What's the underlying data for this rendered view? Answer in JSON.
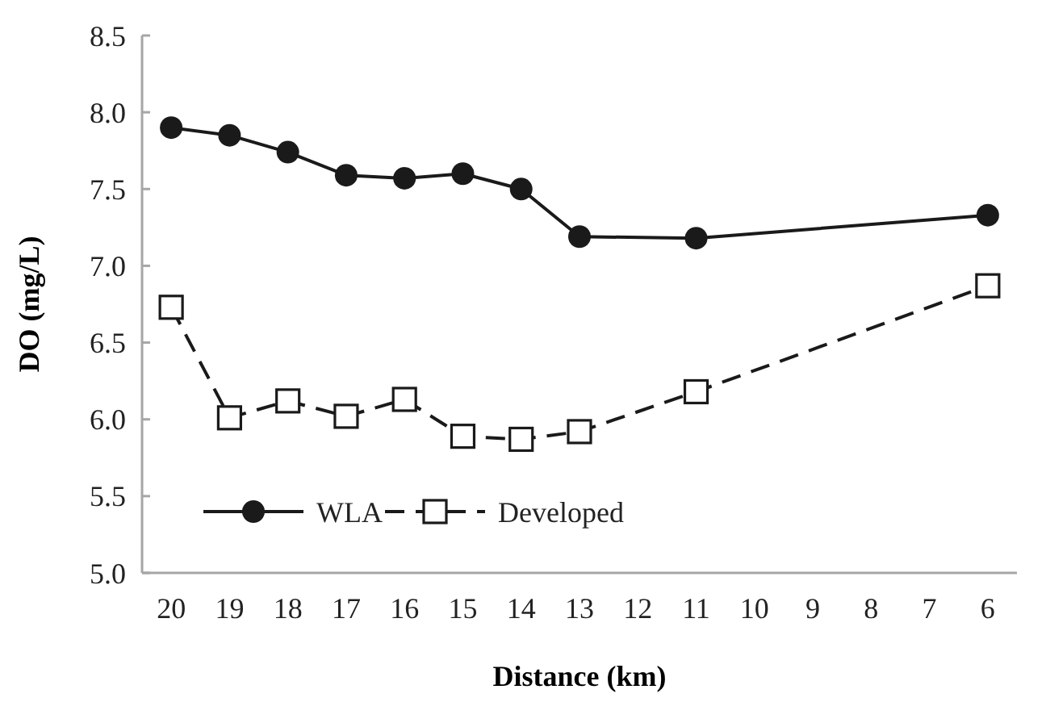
{
  "chart_data": {
    "type": "line",
    "xlabel": "Distance (km)",
    "ylabel": "DO (mg/L)",
    "xlim": [
      20.5,
      5.5
    ],
    "ylim": [
      5.0,
      8.5
    ],
    "xticks": [
      20,
      19,
      18,
      17,
      16,
      15,
      14,
      13,
      12,
      11,
      10,
      9,
      8,
      7,
      6
    ],
    "yticks": [
      {
        "value": 5.0,
        "label": "5.0"
      },
      5.5,
      {
        "value": 6.0,
        "label": "6.0"
      },
      6.5,
      {
        "value": 7.0,
        "label": "7.0"
      },
      7.5,
      {
        "value": 8.0,
        "label": "8.0"
      },
      8.5
    ],
    "grid": false,
    "legend": "bottom left",
    "series": [
      {
        "name": "WLA",
        "color": "#1a1a1a",
        "marker": "circle",
        "line_style": "solid",
        "x": [
          20,
          19,
          18,
          17,
          16,
          15,
          14,
          13,
          11,
          6
        ],
        "values": [
          7.9,
          7.85,
          7.74,
          7.59,
          7.57,
          7.6,
          7.5,
          7.19,
          7.18,
          7.33
        ]
      },
      {
        "name": "Developed",
        "color": "#1a1a1a",
        "marker": "square",
        "line_style": "dashed",
        "x": [
          20,
          19,
          18,
          17,
          16,
          15,
          14,
          13,
          11,
          6
        ],
        "values": [
          6.73,
          6.01,
          6.12,
          6.02,
          6.13,
          5.89,
          5.87,
          5.92,
          6.18,
          6.87
        ]
      }
    ]
  }
}
